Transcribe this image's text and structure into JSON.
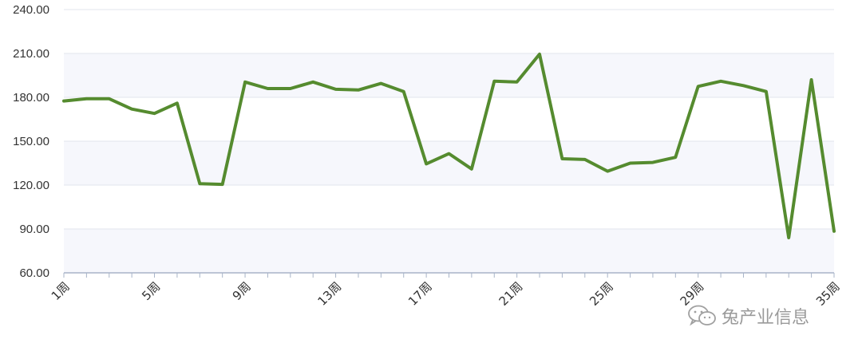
{
  "chart_data": {
    "type": "line",
    "title": "",
    "xlabel": "",
    "ylabel": "",
    "ylim": [
      60,
      240
    ],
    "yticks": [
      "60.00",
      "90.00",
      "120.00",
      "150.00",
      "180.00",
      "210.00",
      "240.00"
    ],
    "x": [
      "1周",
      "2周",
      "3周",
      "4周",
      "5周",
      "6周",
      "7周",
      "8周",
      "9周",
      "10周",
      "11周",
      "12周",
      "13周",
      "14周",
      "15周",
      "16周",
      "17周",
      "18周",
      "19周",
      "20周",
      "21周",
      "22周",
      "23周",
      "24周",
      "25周",
      "26周",
      "27周",
      "28周",
      "29周",
      "30周",
      "31周",
      "32周",
      "33周",
      "34周",
      "35周"
    ],
    "xtick_labels": [
      "1周",
      "5周",
      "9周",
      "13周",
      "17周",
      "21周",
      "25周",
      "29周",
      "35周"
    ],
    "series": [
      {
        "values": [
          177.5,
          179,
          179,
          172,
          169,
          176,
          121,
          120.5,
          190.5,
          186,
          186,
          190.5,
          185.5,
          185,
          189.5,
          184,
          134.5,
          141.5,
          131,
          191,
          190.5,
          209.5,
          138,
          137.5,
          129.5,
          135,
          135.5,
          139,
          187.5,
          191,
          188,
          184,
          84,
          192,
          88.5
        ],
        "color": "#558b2f"
      }
    ],
    "grid": true,
    "banded_background": true,
    "band_color": "#f6f7fc",
    "grid_color": "#e2e4ec",
    "axis_color": "#a8b4c8"
  },
  "watermark": {
    "text": "兔产业信息",
    "icon": "wechat-icon",
    "color": "#9a9a9a"
  }
}
